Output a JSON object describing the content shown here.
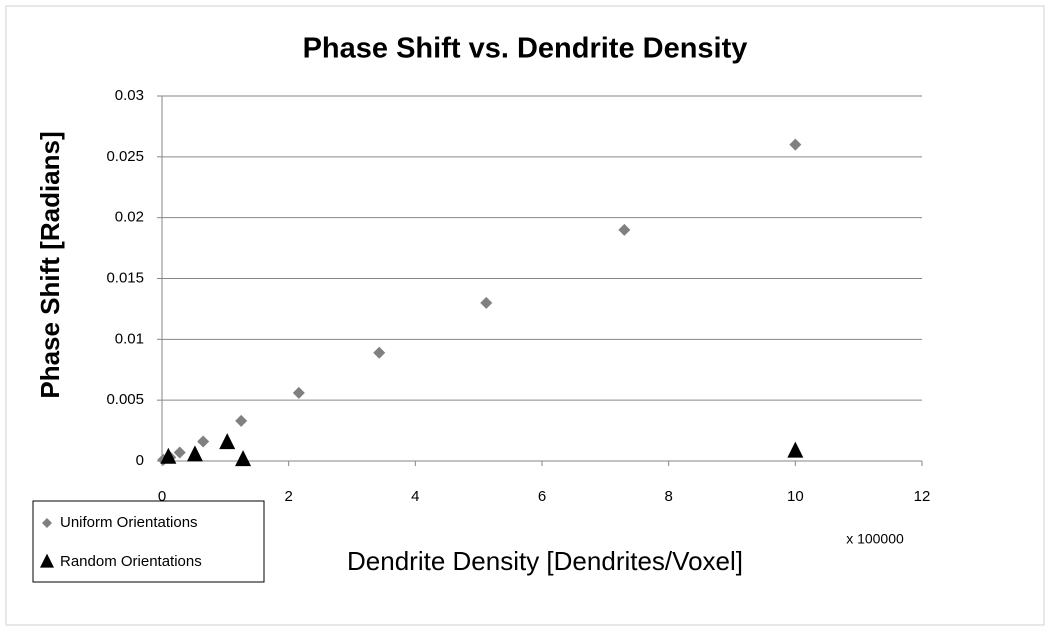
{
  "chart_data": {
    "type": "scatter",
    "title": "Phase Shift vs. Dendrite Density",
    "xlabel": "Dendrite Density [Dendrites/Voxel]",
    "ylabel": "Phase Shift [Radians]",
    "annotation": "x 100000",
    "xlim": [
      0,
      12
    ],
    "xticks": [
      0,
      2,
      4,
      6,
      8,
      10,
      12
    ],
    "ylim": [
      0,
      0.03
    ],
    "yticks": [
      0,
      0.005,
      0.01,
      0.015,
      0.02,
      0.025,
      0.03
    ],
    "grid": true,
    "legend": "bottom-left",
    "series": [
      {
        "name": "Uniform Orientations",
        "color": "#808080",
        "marker": "diamond",
        "x": [
          0.02,
          0.13,
          0.28,
          0.65,
          1.25,
          2.16,
          3.43,
          5.12,
          7.3,
          10.0
        ],
        "values": [
          0.0001,
          0.0003,
          0.0007,
          0.0016,
          0.0033,
          0.0056,
          0.0089,
          0.013,
          0.019,
          0.026
        ]
      },
      {
        "name": "Random Orientations",
        "color": "#000000",
        "marker": "triangle",
        "x": [
          0.1,
          0.52,
          1.03,
          1.28,
          10.0
        ],
        "values": [
          0.0003,
          0.0005,
          0.0015,
          0.0001,
          0.0008
        ]
      }
    ]
  }
}
